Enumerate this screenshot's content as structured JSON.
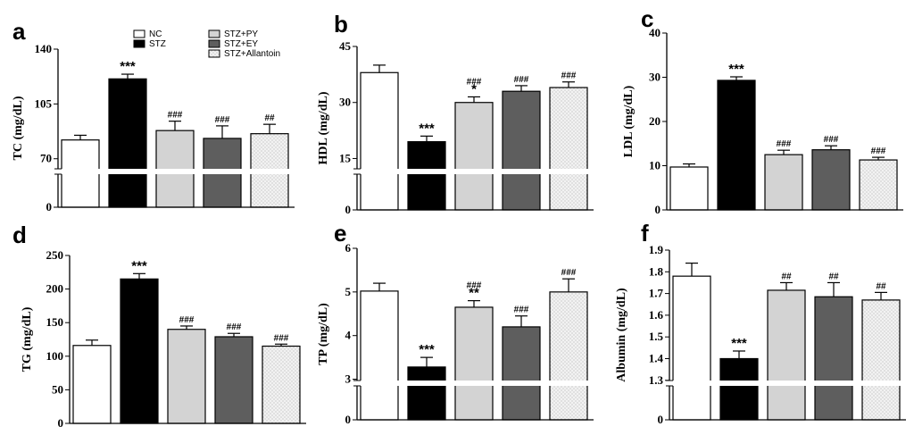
{
  "groups": [
    "NC",
    "STZ",
    "STZ+PY",
    "STZ+EY",
    "STZ+Allantoin"
  ],
  "colors": {
    "NC": "#ffffff",
    "STZ": "#000000",
    "STZ+PY": "#d3d3d3",
    "STZ+EY": "#5e5e5e",
    "STZ+Allantoin": "#eeeeee"
  },
  "chart_data": [
    {
      "id": "a",
      "type": "bar",
      "ylabel": "TC (mg/dL)",
      "categories": [
        "NC",
        "STZ",
        "STZ+PY",
        "STZ+EY",
        "STZ+Allantoin"
      ],
      "values": [
        82,
        121,
        88,
        83,
        86
      ],
      "errors": [
        3,
        3,
        6,
        8,
        6
      ],
      "labels": [
        "",
        "***",
        "###",
        "###",
        "##"
      ],
      "break": true,
      "low_ticks": [
        "0"
      ],
      "ylim": [
        63,
        140
      ],
      "ticks": [
        70,
        105,
        140
      ]
    },
    {
      "id": "b",
      "type": "bar",
      "ylabel": "HDL (mg/dL)",
      "categories": [
        "NC",
        "STZ",
        "STZ+PY",
        "STZ+EY",
        "STZ+Allantoin"
      ],
      "values": [
        38,
        19.5,
        30,
        33,
        34
      ],
      "errors": [
        2,
        1.5,
        1.5,
        1.5,
        1.5
      ],
      "labels": [
        "",
        "***",
        "###\n*",
        "###",
        "###"
      ],
      "break": true,
      "low_ticks": [
        "0"
      ],
      "ylim": [
        12,
        45
      ],
      "ticks": [
        15,
        30,
        45
      ]
    },
    {
      "id": "c",
      "type": "bar",
      "ylabel": "LDL (mg/dL)",
      "categories": [
        "NC",
        "STZ",
        "STZ+PY",
        "STZ+EY",
        "STZ+Allantoin"
      ],
      "values": [
        9.7,
        29.3,
        12.5,
        13.6,
        11.3
      ],
      "errors": [
        0.7,
        0.8,
        1.0,
        0.9,
        0.6
      ],
      "labels": [
        "",
        "***",
        "###",
        "###",
        "###"
      ],
      "break": false,
      "ylim": [
        0,
        40
      ],
      "ticks": [
        0,
        10,
        20,
        30,
        40
      ]
    },
    {
      "id": "d",
      "type": "bar",
      "ylabel": "TG (mg/dL)",
      "categories": [
        "NC",
        "STZ",
        "STZ+PY",
        "STZ+EY",
        "STZ+Allantoin"
      ],
      "values": [
        116,
        215,
        140,
        129,
        115
      ],
      "errors": [
        8,
        8,
        5,
        5,
        3
      ],
      "labels": [
        "",
        "***",
        "###",
        "###",
        "###"
      ],
      "break": false,
      "ylim": [
        0,
        250
      ],
      "ticks": [
        0,
        50,
        100,
        150,
        200,
        250
      ]
    },
    {
      "id": "e",
      "type": "bar",
      "ylabel": "TP (mg/dL)",
      "categories": [
        "NC",
        "STZ",
        "STZ+PY",
        "STZ+EY",
        "STZ+Allantoin"
      ],
      "values": [
        5.02,
        3.28,
        4.65,
        4.2,
        5.0
      ],
      "errors": [
        0.18,
        0.22,
        0.15,
        0.25,
        0.3
      ],
      "labels": [
        "",
        "***",
        "###\n**",
        "###",
        "###"
      ],
      "break": true,
      "low_ticks": [
        "0"
      ],
      "ylim": [
        2.95,
        6
      ],
      "ticks": [
        3,
        4,
        5,
        6
      ]
    },
    {
      "id": "f",
      "type": "bar",
      "ylabel": "Albumin (mg/dL)",
      "categories": [
        "NC",
        "STZ",
        "STZ+PY",
        "STZ+EY",
        "STZ+Allantoin"
      ],
      "values": [
        1.78,
        1.4,
        1.715,
        1.685,
        1.67
      ],
      "errors": [
        0.06,
        0.035,
        0.035,
        0.065,
        0.035
      ],
      "labels": [
        "",
        "***",
        "##",
        "##",
        "##"
      ],
      "break": true,
      "low_ticks": [
        "0"
      ],
      "ylim": [
        1.295,
        1.9
      ],
      "ticks": [
        1.3,
        1.4,
        1.5,
        1.6,
        1.7,
        1.8,
        1.9
      ]
    }
  ]
}
